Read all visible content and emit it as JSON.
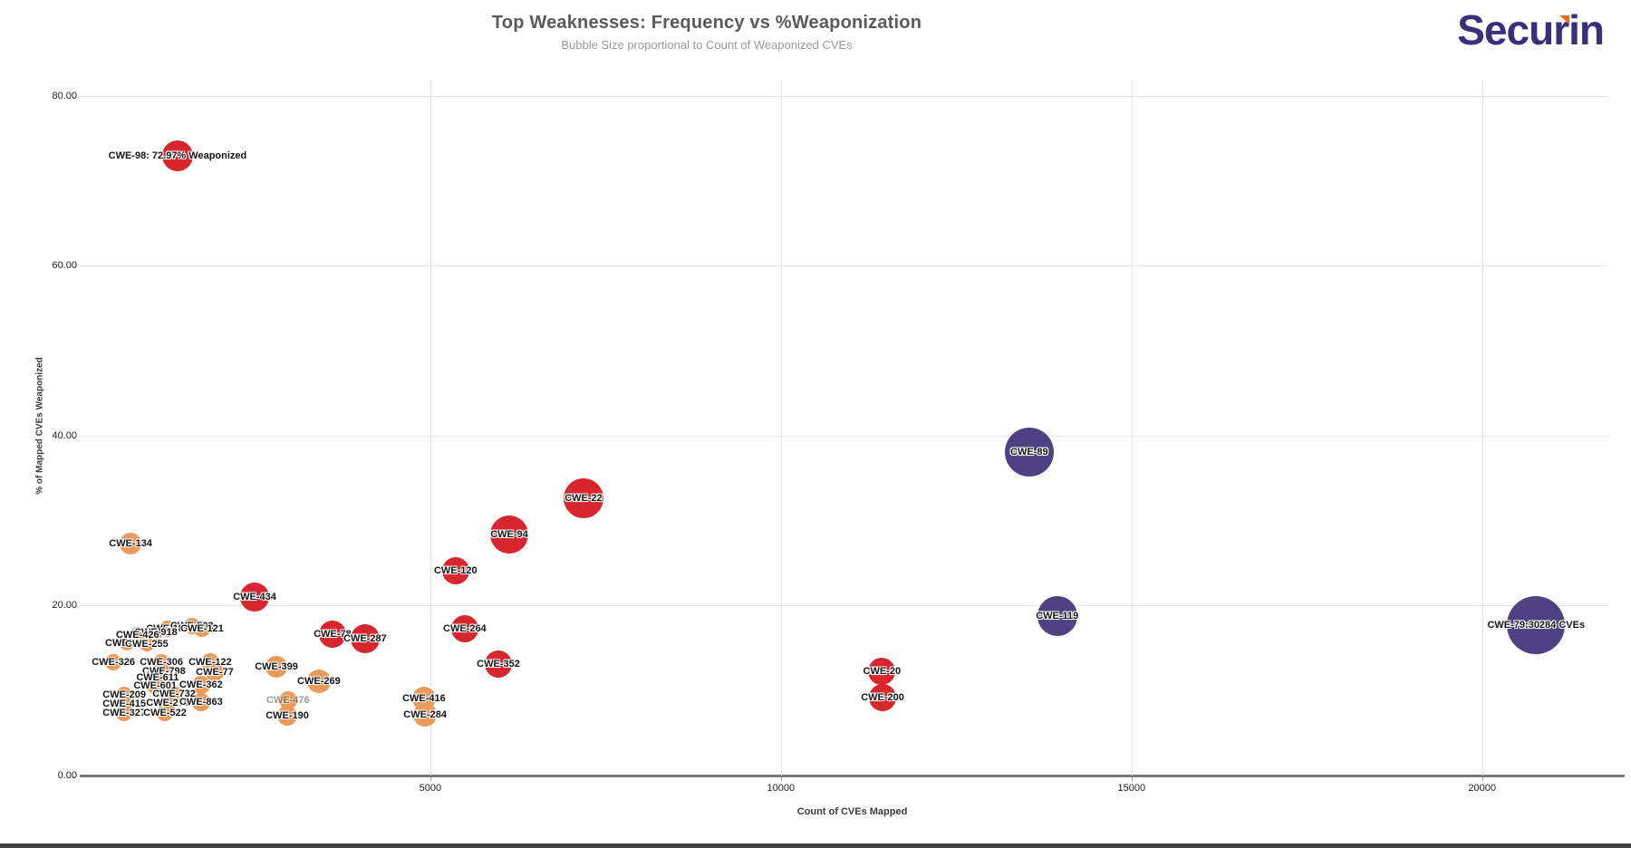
{
  "header": {
    "title": "Top Weaknesses: Frequency vs %Weaponization",
    "subtitle": "Bubble Size proportional to Count of Weaponized CVEs"
  },
  "logo": {
    "part1": "Secu",
    "part2": "r",
    "part3": "in",
    "brand_color": "#3d2e7c",
    "accent_color": "#f26b21"
  },
  "colors": {
    "red": "#d7262e",
    "orange": "#ea9a59",
    "purple": "#4e4184",
    "grid": "#e7e7e7",
    "axis": "#7a7a7a"
  },
  "chart_data": {
    "type": "scatter",
    "title": "Top Weaknesses: Frequency vs %Weaponization",
    "subtitle": "Bubble Size proportional to Count of Weaponized CVEs",
    "xlabel": "Count of CVEs Mapped",
    "ylabel": "% of Mapped CVEs Weaponized",
    "xlim": [
      0,
      21800
    ],
    "ylim": [
      0,
      81.7
    ],
    "x_ticks": [
      5000,
      10000,
      15000,
      20000
    ],
    "y_ticks": [
      0,
      20,
      40,
      60,
      80
    ],
    "grid": true,
    "legend": "none",
    "size_meaning": "Count of Weaponized CVEs",
    "points": [
      {
        "id": "CWE-79",
        "text": "CWE-79:30284 CVEs",
        "x": 20770,
        "y": 17.7,
        "r": 32,
        "color": "purple"
      },
      {
        "id": "CWE-89",
        "text": "CWE-89",
        "x": 13540,
        "y": 38.1,
        "r": 27,
        "color": "purple"
      },
      {
        "id": "CWE-119",
        "text": "CWE-119",
        "x": 13940,
        "y": 18.8,
        "r": 22,
        "color": "purple"
      },
      {
        "id": "CWE-98",
        "text": "CWE-98: 72.97% Weaponized",
        "x": 1395,
        "y": 72.97,
        "r": 17,
        "color": "red"
      },
      {
        "id": "CWE-22",
        "text": "CWE-22",
        "x": 7185,
        "y": 32.6,
        "r": 22,
        "color": "red"
      },
      {
        "id": "CWE-94",
        "text": "CWE-94",
        "x": 6125,
        "y": 28.4,
        "r": 21,
        "color": "red"
      },
      {
        "id": "CWE-120",
        "text": "CWE-120",
        "x": 5360,
        "y": 24.1,
        "r": 15,
        "color": "red"
      },
      {
        "id": "CWE-434",
        "text": "CWE-434",
        "x": 2495,
        "y": 21.0,
        "r": 16,
        "color": "red"
      },
      {
        "id": "CWE-264",
        "text": "CWE-264",
        "x": 5490,
        "y": 17.3,
        "r": 15,
        "color": "red"
      },
      {
        "id": "CWE-78",
        "text": "CWE-78",
        "x": 3605,
        "y": 16.6,
        "r": 15,
        "color": "red"
      },
      {
        "id": "CWE-287",
        "text": "CWE-287",
        "x": 4070,
        "y": 16.1,
        "r": 16,
        "color": "red"
      },
      {
        "id": "CWE-352",
        "text": "CWE-352",
        "x": 5970,
        "y": 13.1,
        "r": 15,
        "color": "red"
      },
      {
        "id": "CWE-20",
        "text": "CWE-20",
        "x": 11440,
        "y": 12.3,
        "r": 15,
        "color": "red"
      },
      {
        "id": "CWE-200",
        "text": "CWE-200",
        "x": 11450,
        "y": 9.2,
        "r": 15,
        "color": "red"
      },
      {
        "id": "CWE-134",
        "text": "CWE-134",
        "x": 725,
        "y": 27.3,
        "r": 12,
        "color": "orange"
      },
      {
        "id": "CWE-399",
        "text": "CWE-399",
        "x": 2805,
        "y": 12.8,
        "r": 12,
        "color": "orange"
      },
      {
        "id": "CWE-269",
        "text": "CWE-269",
        "x": 3410,
        "y": 11.1,
        "r": 13,
        "color": "orange"
      },
      {
        "id": "CWE-416",
        "text": "CWE-416",
        "x": 4910,
        "y": 9.1,
        "r": 13,
        "color": "orange"
      },
      {
        "id": "CWE-284",
        "text": "CWE-284",
        "x": 4925,
        "y": 7.1,
        "r": 13,
        "color": "orange"
      },
      {
        "id": "CWE-476",
        "text": "CWE-476",
        "x": 2970,
        "y": 8.8,
        "r": 10,
        "color": "orange",
        "faint": true
      },
      {
        "id": "CWE-190",
        "text": "CWE-190",
        "x": 2960,
        "y": 7.0,
        "r": 11,
        "color": "orange"
      },
      {
        "id": "CWE-502",
        "text": "CWE-502",
        "x": 1600,
        "y": 17.6,
        "r": 9,
        "color": "orange"
      },
      {
        "id": "CWE-189",
        "text": "CWE-189",
        "x": 1255,
        "y": 17.3,
        "r": 9,
        "color": "orange"
      },
      {
        "id": "CWE-121",
        "text": "CWE-121",
        "x": 1745,
        "y": 17.3,
        "r": 9,
        "color": "orange"
      },
      {
        "id": "CWE-918",
        "text": "CWE-918",
        "x": 1085,
        "y": 16.8,
        "r": 8,
        "color": "orange"
      },
      {
        "id": "CWE-426",
        "text": "CWE-426",
        "x": 825,
        "y": 16.5,
        "r": 9,
        "color": "orange"
      },
      {
        "id": "CWE-639",
        "text": "CWE-639",
        "x": 670,
        "y": 15.6,
        "r": 8,
        "color": "orange"
      },
      {
        "id": "CWE-255",
        "text": "CWE-255",
        "x": 955,
        "y": 15.5,
        "r": 8,
        "color": "orange"
      },
      {
        "id": "CWE-326",
        "text": "CWE-326",
        "x": 480,
        "y": 13.3,
        "r": 9,
        "color": "orange"
      },
      {
        "id": "CWE-306",
        "text": "CWE-306",
        "x": 1165,
        "y": 13.3,
        "r": 9,
        "color": "orange"
      },
      {
        "id": "CWE-122",
        "text": "CWE-122",
        "x": 1860,
        "y": 13.3,
        "r": 10,
        "color": "orange"
      },
      {
        "id": "CWE-798",
        "text": "CWE-798",
        "x": 1200,
        "y": 12.3,
        "r": 9,
        "color": "orange"
      },
      {
        "id": "CWE-77",
        "text": "CWE-77",
        "x": 1925,
        "y": 12.2,
        "r": 10,
        "color": "orange"
      },
      {
        "id": "CWE-611",
        "text": "CWE-611",
        "x": 1110,
        "y": 11.5,
        "r": 9,
        "color": "orange"
      },
      {
        "id": "CWE-601",
        "text": "CWE-601",
        "x": 1075,
        "y": 10.6,
        "r": 9,
        "color": "orange"
      },
      {
        "id": "CWE-362",
        "text": "CWE-362",
        "x": 1730,
        "y": 10.7,
        "r": 10,
        "color": "orange"
      },
      {
        "id": "CWE-209",
        "text": "CWE-209",
        "x": 635,
        "y": 9.5,
        "r": 9,
        "color": "orange"
      },
      {
        "id": "CWE-732",
        "text": "CWE-732",
        "x": 1345,
        "y": 9.6,
        "r": 9,
        "color": "orange"
      },
      {
        "id": "CWE-415",
        "text": "CWE-415",
        "x": 635,
        "y": 8.4,
        "r": 9,
        "color": "orange"
      },
      {
        "id": "CWE-276",
        "text": "CWE-276",
        "x": 1255,
        "y": 8.5,
        "r": 9,
        "color": "orange"
      },
      {
        "id": "CWE-863",
        "text": "CWE-863",
        "x": 1730,
        "y": 8.6,
        "r": 10,
        "color": "orange"
      },
      {
        "id": "CWE-327",
        "text": "CWE-327",
        "x": 635,
        "y": 7.4,
        "r": 9,
        "color": "orange"
      },
      {
        "id": "CWE-522",
        "text": "CWE-522",
        "x": 1215,
        "y": 7.4,
        "r": 9,
        "color": "orange"
      }
    ]
  }
}
